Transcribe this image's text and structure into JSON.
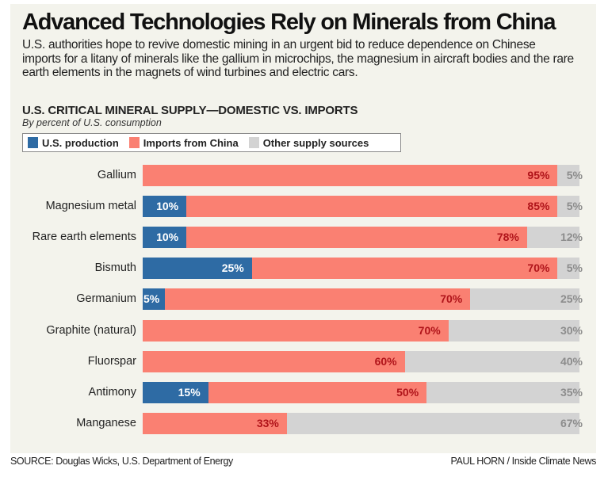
{
  "title": "Advanced Technologies Rely on Minerals from China",
  "dek": "U.S. authorities hope to revive domestic mining in an urgent bid to reduce dependence on Chinese imports for a litany of minerals like the gallium in microchips, the magnesium in aircraft bodies and the rare earth elements in the magnets of wind turbines and electric cars.",
  "footer": {
    "source": "SOURCE: Douglas Wicks, U.S. Department of Energy",
    "credit": "PAUL HORN / Inside Climate News"
  },
  "colors": {
    "us": "#2e6ba4",
    "china": "#fa8072",
    "other": "#d3d3d3",
    "china_label": "#b0141a",
    "other_label": "#8c8c8c",
    "us_label": "#ffffff"
  },
  "chart_data": {
    "type": "bar",
    "orientation": "horizontal-stacked",
    "title": "U.S. CRITICAL MINERAL SUPPLY—DOMESTIC VS. IMPORTS",
    "subtitle": "By percent of U.S. consumption",
    "xlabel": "",
    "ylabel": "",
    "xlim": [
      0,
      100
    ],
    "grid": false,
    "legend_position": "top-left",
    "legend": [
      "U.S. production",
      "Imports from China",
      "Other supply sources"
    ],
    "categories": [
      "Gallium",
      "Magnesium metal",
      "Rare earth elements",
      "Bismuth",
      "Germanium",
      "Graphite (natural)",
      "Fluorspar",
      "Antimony",
      "Manganese"
    ],
    "series": [
      {
        "name": "U.S. production",
        "values": [
          0,
          10,
          10,
          25,
          5,
          0,
          0,
          15,
          0
        ]
      },
      {
        "name": "Imports from China",
        "values": [
          95,
          85,
          78,
          70,
          70,
          70,
          60,
          50,
          33
        ]
      },
      {
        "name": "Other supply sources",
        "values": [
          5,
          5,
          12,
          5,
          25,
          30,
          40,
          35,
          67
        ]
      }
    ]
  }
}
